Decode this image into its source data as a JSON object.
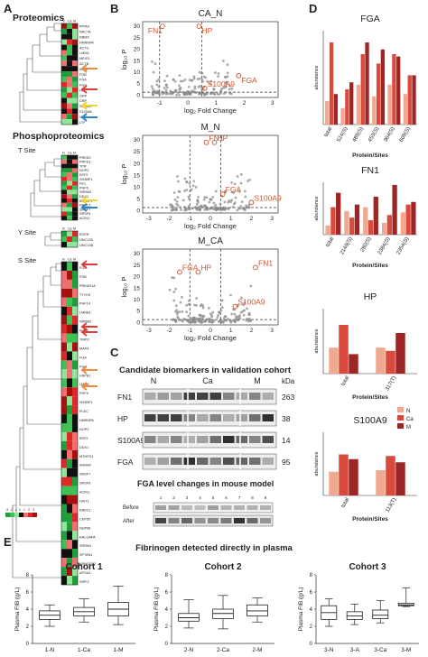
{
  "panels": {
    "a": "A",
    "b": "B",
    "c": "C",
    "d": "D",
    "e": "E"
  },
  "panel_a": {
    "proteomics": "Proteomics",
    "phospho": "Phosphoproteomics",
    "t_site": "T Site",
    "y_site": "Y Site",
    "s_site": "S Site",
    "prot_genes": [
      "PPIA4",
      "NACTA",
      "RBMX",
      "HNRNPA",
      "ACTG",
      "LMNA",
      "MEIG1",
      "ACTB",
      "IGHD",
      "FGB",
      "FGA",
      "FGG",
      "HP",
      "GRP",
      "CRP",
      "S100A9",
      "S100A8",
      "VTN",
      "LTF"
    ],
    "t_genes": [
      "PRKD2",
      "PRKD1",
      "TPR",
      "NOP2",
      "EEF2",
      "SH3BP1",
      "NCL",
      "PHF6",
      "SRRM2",
      "DDX1",
      "BCLAF1",
      "NR3C1",
      "SRSF7",
      "SRSF6",
      "ACIN1"
    ],
    "y_genes": [
      "EGFR",
      "UNC13D",
      "UNC13B"
    ],
    "s_genes": [
      "FGA",
      "FGB",
      "PRKAR1A",
      "TTYH3",
      "PHF14",
      "LMNB1",
      "SRRM2",
      "FLNA",
      "TMPO",
      "MAP4",
      "FGA",
      "FGG",
      "HSPB1",
      "LMNA",
      "PHF6",
      "SH3BP1",
      "PLEC",
      "HNRNPA",
      "NOP2",
      "EEF2",
      "DDX1",
      "MTHFD1",
      "AHNAK",
      "SRSF7",
      "SRSF6",
      "ACIN1",
      "HIST1",
      "RAD21",
      "CEP55",
      "NUP98",
      "RALGAPA",
      "SRRM1",
      "SPTAN1",
      "ARHGEF2",
      "APOA1",
      "SIPF2"
    ],
    "legend_ticks": [
      "-3",
      "-2",
      "-1",
      "0",
      "1",
      "2",
      "3"
    ]
  },
  "panel_b": {
    "xlabel": "log₂ Fold Change",
    "ylabel": "log₁₀ P",
    "plots": [
      {
        "title": "CA_N",
        "labels": [
          "FN1",
          "HP",
          "FGA",
          "S100A9"
        ],
        "xticks": [
          "-1",
          "0",
          "1",
          "2",
          "3"
        ],
        "yticks": [
          "0",
          "5",
          "10",
          "15",
          "20",
          "25",
          "30"
        ]
      },
      {
        "title": "M_N",
        "labels": [
          "FN1",
          "HP",
          "FGA",
          "S100A9"
        ],
        "xticks": [
          "-3",
          "-2",
          "-1",
          "0",
          "1",
          "2",
          "3"
        ],
        "yticks": [
          "0",
          "5",
          "10",
          "15",
          "20",
          "25",
          "30"
        ]
      },
      {
        "title": "M_CA",
        "labels": [
          "FN1",
          "HP",
          "FGA",
          "S100A9"
        ],
        "xticks": [
          "-3",
          "-2",
          "-1",
          "0",
          "1",
          "2",
          "3"
        ],
        "yticks": [
          "0",
          "5",
          "10",
          "15",
          "20",
          "25",
          "30"
        ]
      }
    ]
  },
  "panel_c": {
    "title": "Candidate biomarkers in validation cohort",
    "cols": [
      "N",
      "Ca",
      "M"
    ],
    "kda_label": "kDa",
    "rows": [
      {
        "name": "FN1",
        "kda": "263"
      },
      {
        "name": "HP",
        "kda": "38"
      },
      {
        "name": "S100A9",
        "kda": "14"
      },
      {
        "name": "FGA",
        "kda": "95"
      }
    ],
    "mouse_title": "FGA level changes in mouse model",
    "mouse_lanes": [
      "1",
      "2",
      "3",
      "4",
      "5",
      "6",
      "7",
      "8",
      "9"
    ],
    "before": "Before",
    "after": "After"
  },
  "panel_d": {
    "ylabel": "abundance",
    "xlabel": "Protein/Sites",
    "legend": [
      "N",
      "Ca",
      "M"
    ],
    "colors": {
      "N": "#f0a890",
      "Ca": "#d94a3c",
      "M": "#9c2626"
    }
  },
  "panel_e": {
    "title": "Fibrinogen detected directly in plasma",
    "ylabel": "Plasma FIB (g/L)",
    "yticks": [
      "0",
      "2",
      "4",
      "6",
      "8"
    ]
  },
  "chart_data": [
    {
      "type": "bar",
      "title": "FGA",
      "categories": [
        "total",
        "524(S)",
        "489(S)",
        "453(S)",
        "364(S)",
        "609(S)"
      ],
      "series": [
        {
          "name": "N",
          "values": [
            0.5,
            0.35,
            0.85,
            0.6,
            0.85,
            0.65
          ]
        },
        {
          "name": "Ca",
          "values": [
            1.75,
            0.75,
            1.5,
            1.3,
            1.5,
            1.05
          ]
        },
        {
          "name": "M",
          "values": [
            0.65,
            0.9,
            1.75,
            1.6,
            1.45,
            1.05
          ]
        }
      ],
      "ylim": [
        0,
        2
      ]
    },
    {
      "type": "bar",
      "title": "FN1",
      "categories": [
        "total",
        "2149(S)",
        "280(S)",
        "2384(S)",
        "2354(S)"
      ],
      "series": [
        {
          "name": "N",
          "values": [
            0.35,
            0.9,
            1.05,
            0.45,
            0.85
          ]
        },
        {
          "name": "Ca",
          "values": [
            1.05,
            0.65,
            0.55,
            0.75,
            1.15
          ]
        },
        {
          "name": "M",
          "values": [
            1.6,
            1.15,
            1.45,
            1.9,
            1.25
          ]
        }
      ],
      "ylim": [
        0,
        2
      ]
    },
    {
      "type": "bar",
      "title": "HP",
      "categories": [
        "total",
        "317(T)"
      ],
      "series": [
        {
          "name": "N",
          "values": [
            0.8,
            0.8
          ]
        },
        {
          "name": "Ca",
          "values": [
            1.5,
            0.7
          ]
        },
        {
          "name": "M",
          "values": [
            0.6,
            1.25
          ]
        }
      ],
      "ylim": [
        0,
        2
      ]
    },
    {
      "type": "bar",
      "title": "S100A9",
      "categories": [
        "total",
        "113(T)"
      ],
      "series": [
        {
          "name": "N",
          "values": [
            0.75,
            0.8
          ]
        },
        {
          "name": "Ca",
          "values": [
            1.3,
            1.25
          ]
        },
        {
          "name": "M",
          "values": [
            1.15,
            1.05
          ]
        }
      ],
      "ylim": [
        0,
        2
      ]
    },
    {
      "type": "box",
      "title": "Cohort 1",
      "categories": [
        "1-N",
        "1-Ca",
        "1-M"
      ],
      "boxes": [
        {
          "min": 2.0,
          "q1": 2.8,
          "median": 3.3,
          "q3": 3.8,
          "max": 4.5
        },
        {
          "min": 2.5,
          "q1": 3.2,
          "median": 3.7,
          "q3": 4.2,
          "max": 5.2
        },
        {
          "min": 2.2,
          "q1": 3.2,
          "median": 4.0,
          "q3": 4.8,
          "max": 6.7
        }
      ],
      "ylim": [
        0,
        8
      ]
    },
    {
      "type": "box",
      "title": "Cohort 2",
      "categories": [
        "2-N",
        "2-Ca",
        "2-M"
      ],
      "boxes": [
        {
          "min": 1.8,
          "q1": 2.6,
          "median": 3.0,
          "q3": 3.5,
          "max": 5.1
        },
        {
          "min": 1.7,
          "q1": 2.9,
          "median": 3.5,
          "q3": 4.0,
          "max": 5.6
        },
        {
          "min": 2.5,
          "q1": 3.2,
          "median": 3.8,
          "q3": 4.5,
          "max": 5.3
        }
      ],
      "ylim": [
        0,
        8
      ]
    },
    {
      "type": "box",
      "title": "Cohort 3",
      "categories": [
        "3-N",
        "3-A",
        "3-Ca",
        "3-M"
      ],
      "boxes": [
        {
          "min": 2.0,
          "q1": 2.8,
          "median": 3.6,
          "q3": 4.4,
          "max": 5.2
        },
        {
          "min": 2.2,
          "q1": 2.8,
          "median": 3.2,
          "q3": 3.7,
          "max": 4.6
        },
        {
          "min": 2.4,
          "q1": 2.9,
          "median": 3.3,
          "q3": 3.9,
          "max": 5.0
        },
        {
          "min": 4.3,
          "q1": 4.4,
          "median": 4.5,
          "q3": 4.7,
          "max": 6.5
        }
      ],
      "ylim": [
        0,
        8
      ]
    }
  ]
}
